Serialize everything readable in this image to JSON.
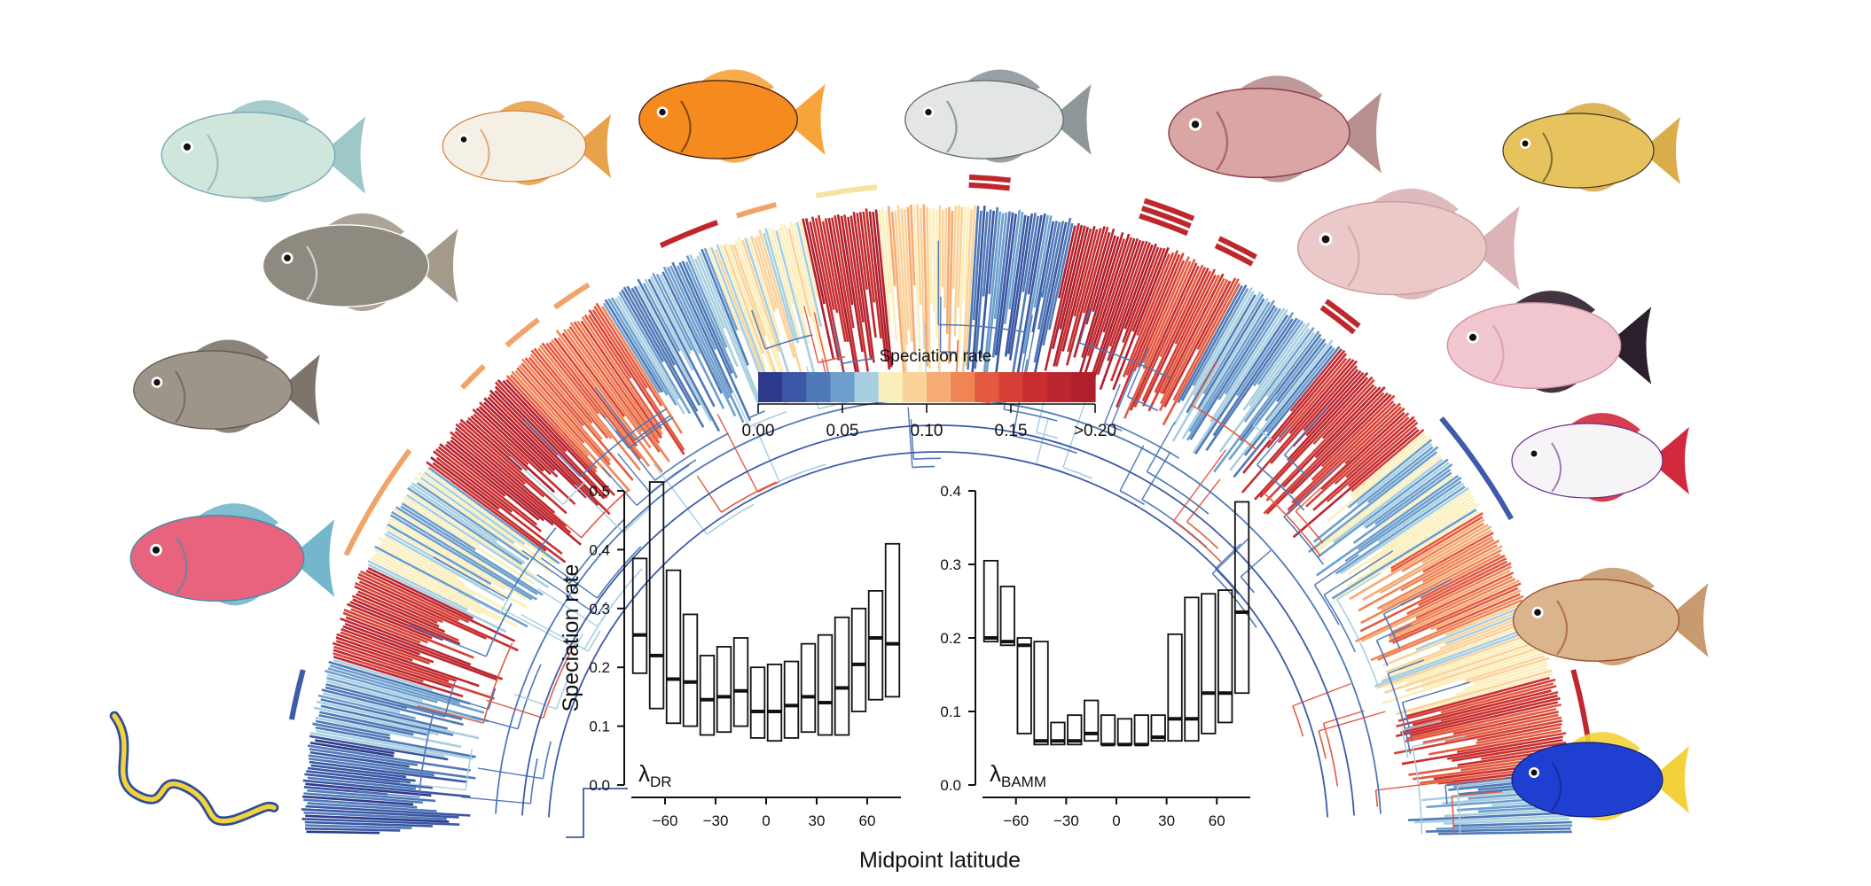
{
  "legend": {
    "title": "Speciation rate",
    "ticks": [
      "0.00",
      "0.05",
      "0.10",
      "0.15",
      ">0.20"
    ],
    "tick_values": [
      0,
      0.05,
      0.1,
      0.15,
      0.2
    ],
    "colors": [
      "#2e3a8c",
      "#3a57a5",
      "#4f79b7",
      "#6d9fcd",
      "#a8cfe0",
      "#fbefbb",
      "#fbd29a",
      "#f6ab73",
      "#ef8455",
      "#e35a40",
      "#d63f35",
      "#c82e2f",
      "#bb2630",
      "#b01f2c"
    ]
  },
  "colors": {
    "blue": "#3d5ba8",
    "red": "#c0272d",
    "orange": "#f0a46a",
    "yellow": "#f6e3a0"
  },
  "shared_xlabel": "Midpoint latitude",
  "chart_data": [
    {
      "type": "boxplot",
      "label_main": "λ",
      "label_sub": "DR",
      "ylabel": "Speciation rate",
      "ylim": [
        0,
        0.5
      ],
      "yticks": [
        "0.0",
        "0.1",
        "0.2",
        "0.3",
        "0.4",
        "0.5"
      ],
      "xticks": [
        "−60",
        "−30",
        "0",
        "30",
        "60"
      ],
      "xtick_values": [
        -60,
        -30,
        0,
        30,
        60
      ],
      "boxes": [
        {
          "lat": -75,
          "q1": 0.19,
          "median": 0.255,
          "q3": 0.385
        },
        {
          "lat": -65,
          "q1": 0.13,
          "median": 0.22,
          "q3": 0.515
        },
        {
          "lat": -55,
          "q1": 0.105,
          "median": 0.18,
          "q3": 0.365
        },
        {
          "lat": -45,
          "q1": 0.1,
          "median": 0.175,
          "q3": 0.29
        },
        {
          "lat": -35,
          "q1": 0.085,
          "median": 0.145,
          "q3": 0.22
        },
        {
          "lat": -25,
          "q1": 0.09,
          "median": 0.15,
          "q3": 0.235
        },
        {
          "lat": -15,
          "q1": 0.1,
          "median": 0.16,
          "q3": 0.25
        },
        {
          "lat": -5,
          "q1": 0.08,
          "median": 0.125,
          "q3": 0.2
        },
        {
          "lat": 5,
          "q1": 0.075,
          "median": 0.125,
          "q3": 0.205
        },
        {
          "lat": 15,
          "q1": 0.08,
          "median": 0.135,
          "q3": 0.21
        },
        {
          "lat": 25,
          "q1": 0.09,
          "median": 0.15,
          "q3": 0.24
        },
        {
          "lat": 35,
          "q1": 0.085,
          "median": 0.14,
          "q3": 0.255
        },
        {
          "lat": 45,
          "q1": 0.085,
          "median": 0.165,
          "q3": 0.285
        },
        {
          "lat": 55,
          "q1": 0.125,
          "median": 0.205,
          "q3": 0.3
        },
        {
          "lat": 65,
          "q1": 0.145,
          "median": 0.25,
          "q3": 0.33
        },
        {
          "lat": 75,
          "q1": 0.15,
          "median": 0.24,
          "q3": 0.41
        }
      ]
    },
    {
      "type": "boxplot",
      "label_main": "λ",
      "label_sub": "BAMM",
      "ylabel": "",
      "ylim": [
        0,
        0.4
      ],
      "yticks": [
        "0.0",
        "0.1",
        "0.2",
        "0.3",
        "0.4"
      ],
      "xticks": [
        "−60",
        "−30",
        "0",
        "30",
        "60"
      ],
      "xtick_values": [
        -60,
        -30,
        0,
        30,
        60
      ],
      "boxes": [
        {
          "lat": -75,
          "q1": 0.195,
          "median": 0.2,
          "q3": 0.305
        },
        {
          "lat": -65,
          "q1": 0.19,
          "median": 0.195,
          "q3": 0.27
        },
        {
          "lat": -55,
          "q1": 0.07,
          "median": 0.19,
          "q3": 0.2
        },
        {
          "lat": -45,
          "q1": 0.055,
          "median": 0.06,
          "q3": 0.195
        },
        {
          "lat": -35,
          "q1": 0.055,
          "median": 0.06,
          "q3": 0.085
        },
        {
          "lat": -25,
          "q1": 0.055,
          "median": 0.06,
          "q3": 0.095
        },
        {
          "lat": -15,
          "q1": 0.06,
          "median": 0.07,
          "q3": 0.115
        },
        {
          "lat": -5,
          "q1": 0.055,
          "median": 0.055,
          "q3": 0.095
        },
        {
          "lat": 5,
          "q1": 0.055,
          "median": 0.055,
          "q3": 0.09
        },
        {
          "lat": 15,
          "q1": 0.055,
          "median": 0.055,
          "q3": 0.095
        },
        {
          "lat": 25,
          "q1": 0.06,
          "median": 0.065,
          "q3": 0.095
        },
        {
          "lat": 35,
          "q1": 0.06,
          "median": 0.09,
          "q3": 0.205
        },
        {
          "lat": 45,
          "q1": 0.06,
          "median": 0.09,
          "q3": 0.255
        },
        {
          "lat": 55,
          "q1": 0.07,
          "median": 0.125,
          "q3": 0.26
        },
        {
          "lat": 65,
          "q1": 0.085,
          "median": 0.125,
          "q3": 0.265
        },
        {
          "lat": 75,
          "q1": 0.125,
          "median": 0.235,
          "q3": 0.385
        }
      ]
    }
  ],
  "fish": [
    {
      "name": "unicornfish",
      "body": "#cfe6dc",
      "fin": "#9ec7c8",
      "accent": "#7aa6b8"
    },
    {
      "name": "butterflyfish",
      "body": "#f4f0e6",
      "fin": "#e9a24c",
      "accent": "#d07a2a"
    },
    {
      "name": "flame-angelfish",
      "body": "#f58a1f",
      "fin": "#f6a43a",
      "accent": "#3b1a10"
    },
    {
      "name": "bream",
      "body": "#e3e6e4",
      "fin": "#8f979b",
      "accent": "#5b6469"
    },
    {
      "name": "sculpin",
      "body": "#d9a5a5",
      "fin": "#b88f8f",
      "accent": "#8e3d4a"
    },
    {
      "name": "rockfish",
      "body": "#e6c35c",
      "fin": "#d9ad4a",
      "accent": "#3d3320"
    },
    {
      "name": "pufferfish",
      "body": "#8e8a80",
      "fin": "#a39a8b",
      "accent": "#ffffff"
    },
    {
      "name": "triggerfish",
      "body": "#9d958a",
      "fin": "#7d756b",
      "accent": "#5c554d"
    },
    {
      "name": "parrotfish",
      "body": "#e8637d",
      "fin": "#74b6cc",
      "accent": "#3f8fa8"
    },
    {
      "name": "eel",
      "body": "#f3d23a",
      "fin": "#2d4c9c",
      "accent": "#2d4c9c"
    },
    {
      "name": "cusk-eel",
      "body": "#ecc9c9",
      "fin": "#dcb3b6",
      "accent": "#c99b9f"
    },
    {
      "name": "snailfish",
      "body": "#f0c6cf",
      "fin": "#2b1f2c",
      "accent": "#d58fa1"
    },
    {
      "name": "firefish",
      "body": "#f6f4f7",
      "fin": "#d2293d",
      "accent": "#6b2c8f"
    },
    {
      "name": "flounder",
      "body": "#d9b48d",
      "fin": "#c79a70",
      "accent": "#9a4a2a"
    },
    {
      "name": "damselfish",
      "body": "#1f3fd0",
      "fin": "#f3d13a",
      "accent": "#0f1f7a"
    }
  ]
}
